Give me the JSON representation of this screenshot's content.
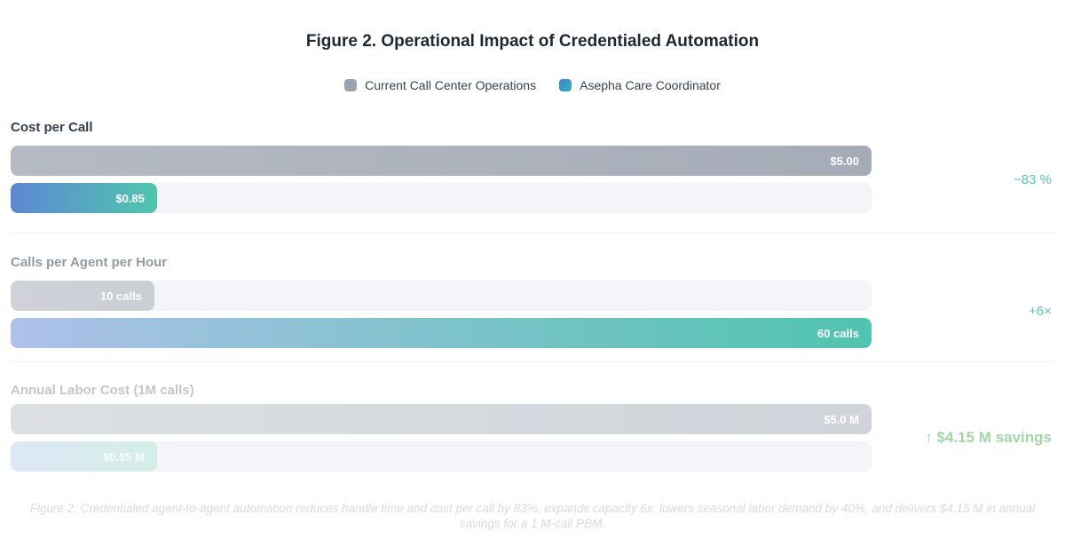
{
  "title": "Figure 2. Operational Impact of Credentialed Automation",
  "legend": {
    "current": {
      "label": "Current Call Center Operations",
      "color": "#9ba3b0"
    },
    "asepha": {
      "label": "Asepha Care Coordinator",
      "color_start": "#4a7fd0",
      "color_end": "#2cb6bd"
    }
  },
  "groups": [
    {
      "label": "Cost per Call",
      "bars": [
        {
          "series": "Current Call Center Operations",
          "value_label": "$5.00",
          "width": "100%"
        },
        {
          "series": "Asepha Care Coordinator",
          "value_label": "$0.85",
          "width": "17%"
        }
      ],
      "delta": "−83 %"
    },
    {
      "label": "Calls per Agent per Hour",
      "bars": [
        {
          "series": "Current Call Center Operations",
          "value_label": "10 calls",
          "width": "16.7%"
        },
        {
          "series": "Asepha Care Coordinator",
          "value_label": "60 calls",
          "width": "100%"
        }
      ],
      "delta": "+6×"
    },
    {
      "label": "Annual Labor Cost (1M calls)",
      "bars": [
        {
          "series": "Current Call Center Operations",
          "value_label": "$5.0 M",
          "width": "100%"
        },
        {
          "series": "Asepha Care Coordinator",
          "value_label": "$0.85 M",
          "width": "17%"
        }
      ],
      "delta": "↑ $4.15 M savings"
    }
  ],
  "caption": "Figure 2. Credentialed agent-to-agent automation reduces handle time and cost per call by 83%, expands capacity 6x, lowers seasonal labor demand by 40%, and delivers $4.15 M in annual savings for a 1 M-call PBM.",
  "colors": {
    "gray_bar": "#a9afb9",
    "brand_gradient_start": "#5e87d3",
    "brand_gradient_end": "#4fc6ae",
    "delta_teal": "#54c4c2",
    "delta_green": "#a2d6a7",
    "track": "#f4f5f8"
  },
  "chart_data": {
    "type": "bar",
    "orientation": "horizontal",
    "title": "Figure 2. Operational Impact of Credentialed Automation",
    "categories": [
      "Cost per Call",
      "Calls per Agent per Hour",
      "Annual Labor Cost (1M calls)"
    ],
    "series": [
      {
        "name": "Current Call Center Operations",
        "values": [
          5.0,
          10,
          5000000
        ],
        "value_labels": [
          "$5.00",
          "10 calls",
          "$5.0 M"
        ]
      },
      {
        "name": "Asepha Care Coordinator",
        "values": [
          0.85,
          60,
          850000
        ],
        "value_labels": [
          "$0.85",
          "60 calls",
          "$0.85 M"
        ]
      }
    ],
    "deltas": [
      "−83 %",
      "+6×",
      "↑ $4.15 M savings"
    ],
    "legend_position": "top-center",
    "grid": false,
    "bar_scale": "each row normalized to max of its pair; full bar = 970px"
  }
}
